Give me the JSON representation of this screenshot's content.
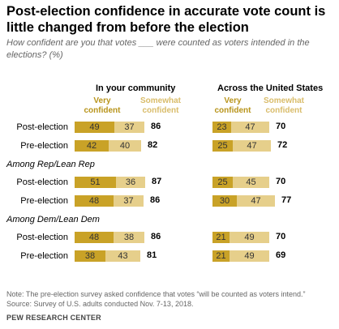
{
  "title": "Post-election confidence in accurate vote count is little changed from before the election",
  "subtitle": "How confident are you that votes ___ were counted as voters intended in the elections? (%)",
  "note": "Note: The pre-election survey asked confidence that votes “will be counted as voters intend.”",
  "source": "Source: Survey of U.S. adults conducted Nov. 7-13, 2018.",
  "credit": "PEW RESEARCH CENTER",
  "colors": {
    "very": "#c9a227",
    "somewhat": "#e6cf8b",
    "very_label": "#b8941b",
    "somewhat_label": "#d9bc6a"
  },
  "chart_data": {
    "type": "bar",
    "stacked": true,
    "panels": [
      "In your community",
      "Across the United States"
    ],
    "legend": [
      "Very confident",
      "Somewhat confident"
    ],
    "groups": [
      {
        "label": "",
        "rows": [
          {
            "label": "Post-election",
            "community": [
              49,
              37,
              86
            ],
            "us": [
              23,
              47,
              70
            ]
          },
          {
            "label": "Pre-election",
            "community": [
              42,
              40,
              82
            ],
            "us": [
              25,
              47,
              72
            ]
          }
        ]
      },
      {
        "label": "Among Rep/Lean Rep",
        "rows": [
          {
            "label": "Post-election",
            "community": [
              51,
              36,
              87
            ],
            "us": [
              25,
              45,
              70
            ]
          },
          {
            "label": "Pre-election",
            "community": [
              48,
              37,
              86
            ],
            "us": [
              30,
              47,
              77
            ]
          }
        ]
      },
      {
        "label": "Among Dem/Lean Dem",
        "rows": [
          {
            "label": "Post-election",
            "community": [
              48,
              38,
              86
            ],
            "us": [
              21,
              49,
              70
            ]
          },
          {
            "label": "Pre-election",
            "community": [
              38,
              43,
              81
            ],
            "us": [
              21,
              49,
              69
            ]
          }
        ]
      }
    ]
  }
}
